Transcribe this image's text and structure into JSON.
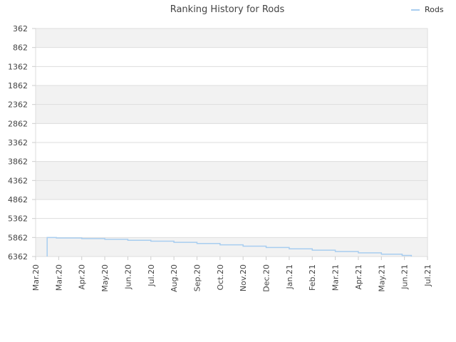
{
  "chart_data": {
    "type": "line",
    "title": "Ranking History for Rods",
    "xlabel": "",
    "ylabel": "",
    "y_inverted": true,
    "ylim": [
      6362,
      362
    ],
    "y_ticks": [
      362,
      862,
      1362,
      1862,
      2362,
      2862,
      3362,
      3862,
      4362,
      4862,
      5362,
      5862,
      6362
    ],
    "x_ticks": [
      "Mar.20",
      "Mar.20",
      "Apr.20",
      "May.20",
      "Jun.20",
      "Jul.20",
      "Aug.20",
      "Sep.20",
      "Oct.20",
      "Nov.20",
      "Dec.20",
      "Jan.21",
      "Feb.21",
      "Mar.21",
      "Apr.21",
      "May.21",
      "Jun.21",
      "Jul.21"
    ],
    "grid": true,
    "legend_position": "top-right",
    "colors": {
      "series": "#a8cdf0",
      "band_shaded": "#f2f2f2",
      "band_plain": "#ffffff",
      "grid": "#dddddd"
    },
    "series": [
      {
        "name": "Rods",
        "points": [
          [
            "Mar.20",
            6362
          ],
          [
            "Mar.20",
            5862
          ],
          [
            "Mar.20",
            5875
          ],
          [
            "Apr.20",
            5890
          ],
          [
            "May.20",
            5910
          ],
          [
            "Jun.20",
            5935
          ],
          [
            "Jul.20",
            5960
          ],
          [
            "Aug.20",
            5990
          ],
          [
            "Sep.20",
            6020
          ],
          [
            "Oct.20",
            6055
          ],
          [
            "Nov.20",
            6090
          ],
          [
            "Dec.20",
            6125
          ],
          [
            "Jan.21",
            6160
          ],
          [
            "Feb.21",
            6195
          ],
          [
            "Mar.21",
            6230
          ],
          [
            "Apr.21",
            6265
          ],
          [
            "May.21",
            6300
          ],
          [
            "Jun.21",
            6335
          ],
          [
            "Jun.21",
            6362
          ]
        ]
      }
    ]
  }
}
